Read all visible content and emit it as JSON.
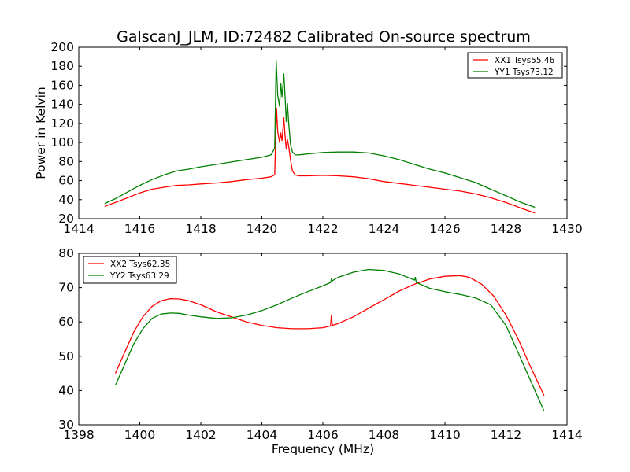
{
  "chart_data": [
    {
      "type": "line",
      "title": "GalscanJ_JLM, ID:72482 Calibrated On-source spectrum",
      "xlabel": "",
      "ylabel": "Power in Kelvin",
      "xlim": [
        1414,
        1430
      ],
      "ylim": [
        20,
        200
      ],
      "xticks": [
        "1414",
        "1416",
        "1418",
        "1420",
        "1422",
        "1424",
        "1426",
        "1428",
        "1430"
      ],
      "yticks": [
        "20",
        "40",
        "60",
        "80",
        "100",
        "120",
        "140",
        "160",
        "180",
        "200"
      ],
      "grid": false,
      "legend_position": "top-right",
      "series": [
        {
          "name": "XX1 Tsys55.46",
          "color": "#ff0000",
          "x": [
            1414.85,
            1415.2,
            1415.6,
            1416.0,
            1416.4,
            1416.8,
            1417.2,
            1417.6,
            1418.0,
            1418.5,
            1419.0,
            1419.5,
            1420.0,
            1420.3,
            1420.42,
            1420.48,
            1420.52,
            1420.58,
            1420.62,
            1420.66,
            1420.72,
            1420.76,
            1420.8,
            1420.84,
            1420.88,
            1420.94,
            1421.0,
            1421.1,
            1421.2,
            1421.5,
            1422.0,
            1422.5,
            1423.0,
            1423.5,
            1424.0,
            1424.5,
            1425.0,
            1425.5,
            1426.0,
            1426.5,
            1427.0,
            1427.5,
            1428.0,
            1428.5,
            1428.95
          ],
          "y": [
            33,
            37,
            42,
            47,
            51,
            53,
            55,
            55.5,
            56.5,
            57.5,
            59,
            61,
            62.5,
            64,
            66,
            136,
            112,
            100,
            110,
            102,
            126,
            108,
            93,
            103,
            96,
            82,
            70,
            66,
            65,
            65,
            65.5,
            65,
            64,
            62,
            59,
            57,
            55,
            53,
            51,
            49,
            46,
            42,
            37,
            31,
            26
          ]
        },
        {
          "name": "YY1 Tsys73.12",
          "color": "#008000",
          "x": [
            1414.85,
            1415.2,
            1415.6,
            1416.0,
            1416.4,
            1416.8,
            1417.2,
            1417.6,
            1418.0,
            1418.5,
            1419.0,
            1419.5,
            1420.0,
            1420.3,
            1420.42,
            1420.47,
            1420.52,
            1420.58,
            1420.62,
            1420.66,
            1420.72,
            1420.76,
            1420.8,
            1420.84,
            1420.88,
            1420.94,
            1421.0,
            1421.1,
            1421.2,
            1421.5,
            1422.0,
            1422.5,
            1423.0,
            1423.5,
            1424.0,
            1424.5,
            1425.0,
            1425.5,
            1426.0,
            1426.5,
            1427.0,
            1427.5,
            1428.0,
            1428.5,
            1428.95
          ],
          "y": [
            36,
            41,
            48,
            55,
            61,
            66,
            70,
            72,
            74.5,
            77,
            79.5,
            82,
            84.5,
            87,
            94,
            186,
            150,
            138,
            162,
            148,
            172,
            150,
            122,
            141,
            120,
            98,
            90,
            87,
            87,
            88,
            89.5,
            90,
            90,
            89,
            86,
            82,
            77,
            72,
            68,
            63,
            58,
            51,
            44,
            37,
            32
          ]
        }
      ]
    },
    {
      "type": "line",
      "title": "",
      "xlabel": "Frequency (MHz)",
      "ylabel": "",
      "xlim": [
        1398,
        1414
      ],
      "ylim": [
        30,
        80
      ],
      "xticks": [
        "1398",
        "1400",
        "1402",
        "1404",
        "1406",
        "1408",
        "1410",
        "1412",
        "1414"
      ],
      "yticks": [
        "30",
        "40",
        "50",
        "60",
        "70",
        "80"
      ],
      "grid": false,
      "legend_position": "top-left",
      "series": [
        {
          "name": "XX2 Tsys62.35",
          "color": "#ff0000",
          "x": [
            1399.2,
            1399.5,
            1399.8,
            1400.1,
            1400.4,
            1400.7,
            1401.0,
            1401.3,
            1401.6,
            1402.0,
            1402.5,
            1403.0,
            1403.5,
            1404.0,
            1404.5,
            1405.0,
            1405.5,
            1406.0,
            1406.25,
            1406.28,
            1406.31,
            1406.5,
            1407.0,
            1407.5,
            1408.0,
            1408.5,
            1409.0,
            1409.5,
            1410.0,
            1410.5,
            1410.8,
            1411.2,
            1411.6,
            1412.0,
            1412.4,
            1412.8,
            1413.25
          ],
          "y": [
            45,
            51,
            57,
            61.5,
            64.5,
            66.2,
            66.8,
            66.7,
            66.2,
            65,
            63,
            61.5,
            60,
            59,
            58.3,
            58,
            58,
            58.3,
            58.8,
            62,
            59,
            59.5,
            61.5,
            64,
            66.5,
            69,
            71,
            72.5,
            73.3,
            73.5,
            73,
            71,
            67.5,
            62,
            55,
            47,
            38.5
          ]
        },
        {
          "name": "YY2 Tsys63.29",
          "color": "#008000",
          "x": [
            1399.2,
            1399.5,
            1399.8,
            1400.1,
            1400.4,
            1400.7,
            1401.0,
            1401.3,
            1401.6,
            1402.0,
            1402.5,
            1403.0,
            1403.5,
            1404.0,
            1404.5,
            1405.0,
            1405.5,
            1406.0,
            1406.25,
            1406.28,
            1406.31,
            1406.5,
            1407.0,
            1407.5,
            1408.0,
            1408.5,
            1409.0,
            1409.03,
            1409.06,
            1409.5,
            1410.0,
            1410.5,
            1411.0,
            1411.5,
            1412.0,
            1412.4,
            1412.8,
            1413.25
          ],
          "y": [
            41.5,
            47.5,
            53.5,
            58,
            61,
            62.3,
            62.6,
            62.5,
            62,
            61.5,
            61,
            61.2,
            62,
            63.3,
            65,
            67,
            68.8,
            70.5,
            71.5,
            72.5,
            72,
            73,
            74.5,
            75.3,
            75,
            74,
            72.2,
            73,
            71.5,
            69.8,
            68.8,
            68,
            67,
            65,
            59,
            51,
            43,
            34
          ]
        }
      ]
    }
  ]
}
